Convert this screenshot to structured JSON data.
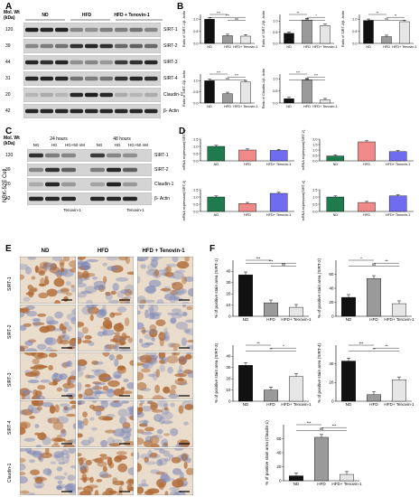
{
  "panels": {
    "A": {
      "letter": "A",
      "mw_header": "Mol. Wt\n(kDa)",
      "groups": [
        "ND",
        "HFD",
        "HFD + Tenovin-1"
      ],
      "bands": [
        {
          "mw": "120",
          "name": "SIRT-1"
        },
        {
          "mw": "39",
          "name": "SIRT-2"
        },
        {
          "mw": "44",
          "name": "SIRT-3"
        },
        {
          "mw": "31",
          "name": "SIRT-4"
        },
        {
          "mw": "20",
          "name": "Claudin-1"
        },
        {
          "mw": "42",
          "name": "β- Actin"
        }
      ]
    },
    "B": {
      "letter": "B"
    },
    "C": {
      "letter": "C",
      "mw_header": "Mol. Wt\n(kDa)",
      "side_label": "NRK-52E Cell",
      "time_left": "24 hours",
      "time_right": "48 hours",
      "lanes_left": [
        "NG",
        "HG",
        "HG+50 nM"
      ],
      "lanes_right": [
        "NG",
        "HG",
        "HG+50 nM"
      ],
      "bottom_left": "Tenovin-1",
      "bottom_right": "Tenovin-1",
      "bands": [
        {
          "mw": "120",
          "name": "SIRT-1"
        },
        {
          "mw": "39",
          "name": "SIRT-2"
        },
        {
          "mw": "20",
          "name": "Claudin-1"
        },
        {
          "mw": "42",
          "name": "β- Actin"
        }
      ]
    },
    "D": {
      "letter": "D"
    },
    "E": {
      "letter": "E",
      "columns": [
        "ND",
        "HFD",
        "HFD + Tenovin-1"
      ],
      "rows": [
        "SIRT-1",
        "SIRT-2",
        "SIRT-3",
        "SIRT-4",
        "Claudin-1"
      ]
    },
    "F": {
      "letter": "F"
    }
  },
  "colors": {
    "black": "#111111",
    "grey": "#9a9a9a",
    "light": "#e6e6e6",
    "green": "#1f7a4d",
    "pink": "#f08a8a",
    "blue": "#6f6cf0",
    "ihc_brown": "#b06a36",
    "ihc_bg": "#e9dccb",
    "ihc_blue": "#7b86b8"
  },
  "chart_data": [
    {
      "id": "B1",
      "type": "bar",
      "ylabel": "Ratio of SIRT-1/β- Actin",
      "categories": [
        "ND",
        "HFD",
        "HFD+ Tenovin-1"
      ],
      "values": [
        1.0,
        0.32,
        0.3
      ],
      "ylim": [
        0,
        1.2
      ],
      "yticks": [
        "0.0",
        "0.5",
        "1.0"
      ],
      "sig": [
        [
          "0",
          "1",
          "***"
        ],
        [
          "0",
          "2",
          "***"
        ],
        [
          "1",
          "2",
          "ns"
        ]
      ]
    },
    {
      "id": "B2",
      "type": "bar",
      "ylabel": "Ratio of SIRT-2/β- Actin",
      "categories": [
        "ND",
        "HFD",
        "HFD+ Tenovin-1"
      ],
      "values": [
        0.45,
        1.05,
        0.8
      ],
      "ylim": [
        0,
        1.3
      ],
      "yticks": [
        "0.0",
        "0.5",
        "1.0"
      ],
      "sig": [
        [
          "0",
          "1",
          "**"
        ],
        [
          "1",
          "2",
          "*"
        ],
        [
          "0",
          "2",
          "ns"
        ]
      ]
    },
    {
      "id": "B3",
      "type": "bar",
      "ylabel": "Ratio of SIRT-3/β- Actin",
      "categories": [
        "ND",
        "HFD",
        "HFD+ Tenovin-1"
      ],
      "values": [
        0.95,
        0.28,
        0.9
      ],
      "ylim": [
        0,
        1.2
      ],
      "yticks": [
        "0.0",
        "0.5",
        "1.0"
      ],
      "sig": [
        [
          "0",
          "1",
          "**"
        ],
        [
          "1",
          "2",
          "**"
        ],
        [
          "0",
          "2",
          "ns"
        ]
      ]
    },
    {
      "id": "B4",
      "type": "bar",
      "ylabel": "Ratio of SIRT-4/β- Actin",
      "categories": [
        "ND",
        "HFD",
        "HFD+ Tenovin-1"
      ],
      "values": [
        1.0,
        0.42,
        0.95
      ],
      "ylim": [
        0,
        1.3
      ],
      "yticks": [
        "0.0",
        "0.5",
        "1.0"
      ],
      "sig": [
        [
          "0",
          "1",
          "***"
        ],
        [
          "1",
          "2",
          "***"
        ],
        [
          "0",
          "2",
          "ns"
        ]
      ]
    },
    {
      "id": "B5",
      "type": "bar",
      "ylabel": "Ratio of Claudin-1/β- Actin",
      "categories": [
        "ND",
        "HFD",
        "HFD+ Tenovin-1"
      ],
      "values": [
        0.18,
        0.95,
        0.13
      ],
      "ylim": [
        0,
        1.2
      ],
      "yticks": [
        "0.0",
        "0.5",
        "1.0"
      ],
      "sig": [
        [
          "0",
          "1",
          "***"
        ],
        [
          "1",
          "2",
          "***"
        ],
        [
          "0",
          "2",
          "ns"
        ]
      ]
    },
    {
      "id": "D1",
      "type": "bar",
      "ylabel": "mRNA expression(SIRT-1)",
      "categories": [
        "ND",
        "HFD",
        "HFD+ Tenovin-1"
      ],
      "values": [
        1.0,
        0.75,
        0.72
      ],
      "ylim": [
        0,
        1.5
      ],
      "yticks": [
        "0.0",
        "0.5",
        "1.0",
        "1.5"
      ],
      "colors": [
        "green",
        "pink",
        "blue"
      ],
      "sig": []
    },
    {
      "id": "D2",
      "type": "bar",
      "ylabel": "mRNA expression(SIRT-2)",
      "categories": [
        "ND",
        "HFD",
        "HFD+ Tenovin-1"
      ],
      "values": [
        0.45,
        1.75,
        0.85
      ],
      "ylim": [
        0,
        2.0
      ],
      "yticks": [
        "0.0",
        "0.5",
        "1.0",
        "1.5",
        "2.0"
      ],
      "colors": [
        "green",
        "pink",
        "blue"
      ],
      "sig": []
    },
    {
      "id": "D3",
      "type": "bar",
      "ylabel": "mRNA expression(SIRT-3)",
      "categories": [
        "ND",
        "HFD",
        "HFD+ Tenovin-1"
      ],
      "values": [
        1.0,
        0.55,
        1.25
      ],
      "ylim": [
        0,
        1.5
      ],
      "yticks": [
        "0.0",
        "0.5",
        "1.0",
        "1.5"
      ],
      "colors": [
        "green",
        "pink",
        "blue"
      ],
      "sig": []
    },
    {
      "id": "D4",
      "type": "bar",
      "ylabel": "mRNA expression(SIRT-4)",
      "categories": [
        "ND",
        "HFD",
        "HFD+ Tenovin-1"
      ],
      "values": [
        1.0,
        0.62,
        1.08
      ],
      "ylim": [
        0,
        1.5
      ],
      "yticks": [
        "0.0",
        "0.5",
        "1.0",
        "1.5"
      ],
      "colors": [
        "green",
        "pink",
        "blue"
      ],
      "sig": []
    },
    {
      "id": "F1",
      "type": "bar",
      "ylabel": "% of positive stain area (SIRT-1)",
      "categories": [
        "ND",
        "HFD",
        "HFD+ Tenovin-1"
      ],
      "values": [
        37,
        12,
        8
      ],
      "ylim": [
        0,
        50
      ],
      "yticks": [
        "0",
        "10",
        "20",
        "30",
        "40"
      ],
      "sig": [
        [
          "0",
          "1",
          "***"
        ],
        [
          "0",
          "2",
          "***"
        ],
        [
          "1",
          "2",
          "ns"
        ]
      ]
    },
    {
      "id": "F2",
      "type": "bar",
      "ylabel": "% of positive stain area (SIRT-2)",
      "categories": [
        "ND",
        "HFD",
        "HFD+ Tenovin-1"
      ],
      "values": [
        27,
        54,
        18
      ],
      "ylim": [
        0,
        80
      ],
      "yticks": [
        "0",
        "20",
        "40",
        "60"
      ],
      "sig": [
        [
          "0",
          "1",
          "*"
        ],
        [
          "1",
          "2",
          "**"
        ],
        [
          "0",
          "2",
          "ns"
        ]
      ]
    },
    {
      "id": "F3",
      "type": "bar",
      "ylabel": "% of positive stain area (SIRT-3)",
      "categories": [
        "ND",
        "HFD",
        "HFD+ Tenovin-1"
      ],
      "values": [
        32,
        10,
        22
      ],
      "ylim": [
        0,
        50
      ],
      "yticks": [
        "0",
        "10",
        "20",
        "30",
        "40"
      ],
      "sig": [
        [
          "0",
          "1",
          "**"
        ],
        [
          "1",
          "2",
          "*"
        ],
        [
          "0",
          "2",
          "**"
        ]
      ]
    },
    {
      "id": "F4",
      "type": "bar",
      "ylabel": "% of positive stain area (SIRT-4)",
      "categories": [
        "ND",
        "HFD",
        "HFD+ Tenovin-1"
      ],
      "values": [
        43,
        7,
        23
      ],
      "ylim": [
        0,
        60
      ],
      "yticks": [
        "0",
        "20",
        "40"
      ],
      "sig": [
        [
          "0",
          "1",
          "***"
        ],
        [
          "1",
          "2",
          "**"
        ],
        [
          "0",
          "2",
          "**"
        ]
      ]
    },
    {
      "id": "F5",
      "type": "bar",
      "ylabel": "% of positive stain area (Claudin-1)",
      "categories": [
        "ND",
        "HFD",
        "HFD+ Tenovin-1"
      ],
      "values": [
        7,
        62,
        9
      ],
      "ylim": [
        0,
        80
      ],
      "yticks": [
        "0",
        "20",
        "40",
        "60"
      ],
      "sig": [
        [
          "0",
          "1",
          "***"
        ],
        [
          "1",
          "2",
          "***"
        ],
        [
          "0",
          "2",
          "ns"
        ]
      ]
    }
  ]
}
